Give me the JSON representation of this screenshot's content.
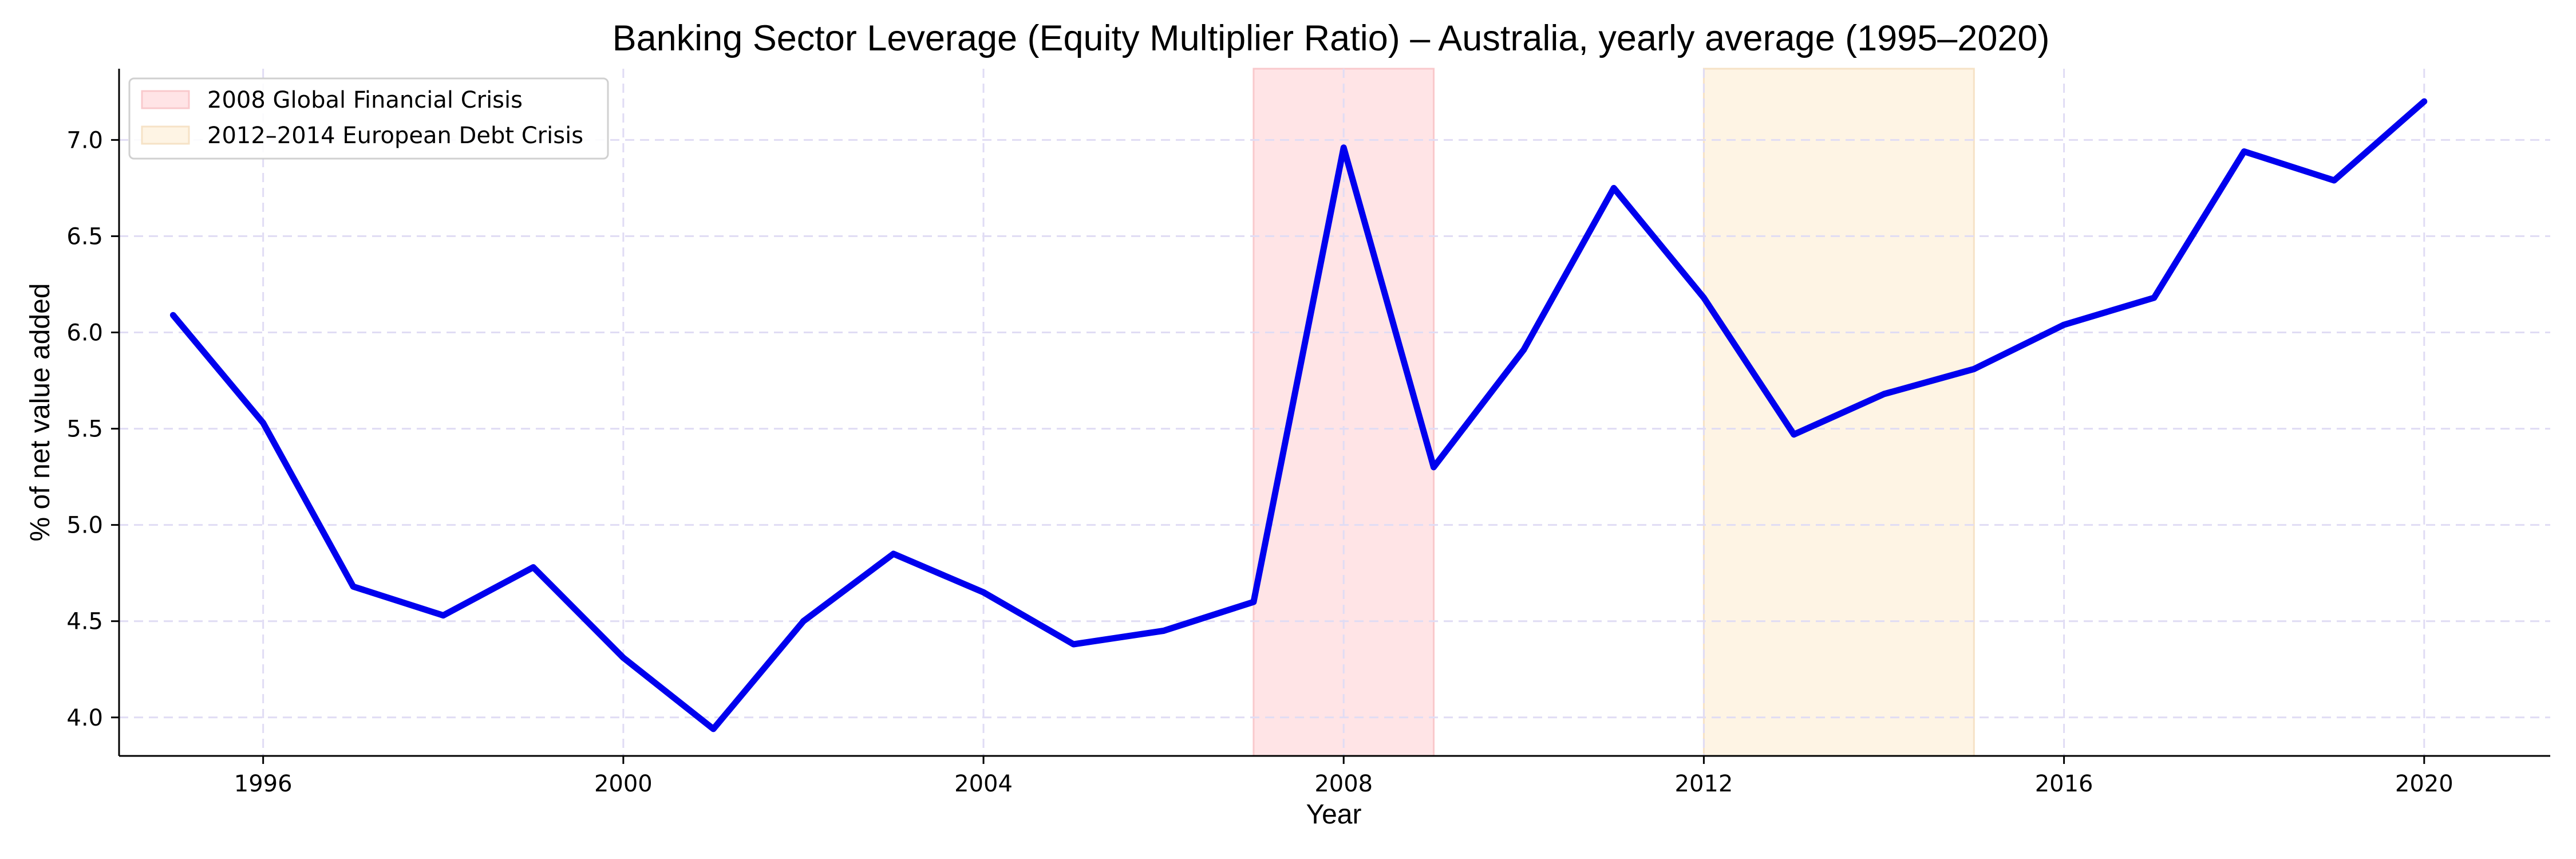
{
  "chart_data": {
    "type": "line",
    "title": "Banking Sector Leverage (Equity Multiplier Ratio) – Australia, yearly average (1995–2020)",
    "xlabel": "Year",
    "ylabel": "% of net value added",
    "xlim": [
      1994.4,
      2021.4
    ],
    "ylim": [
      3.8,
      7.37
    ],
    "x_ticks": [
      1996,
      2000,
      2004,
      2008,
      2012,
      2016,
      2020
    ],
    "y_ticks": [
      4.0,
      4.5,
      5.0,
      5.5,
      6.0,
      6.5,
      7.0
    ],
    "y_tick_labels": [
      "4.0",
      "4.5",
      "5.0",
      "5.5",
      "6.0",
      "6.5",
      "7.0"
    ],
    "grid": true,
    "legend_position": "top-left",
    "series": [
      {
        "color": "#0000ee",
        "x": [
          1995,
          1996,
          1997,
          1998,
          1999,
          2000,
          2001,
          2002,
          2003,
          2004,
          2005,
          2006,
          2007,
          2008,
          2009,
          2010,
          2011,
          2012,
          2013,
          2014,
          2015,
          2016,
          2017,
          2018,
          2019,
          2020
        ],
        "values": [
          6.09,
          5.53,
          4.68,
          4.53,
          4.78,
          4.31,
          3.94,
          4.5,
          4.85,
          4.65,
          4.38,
          4.45,
          4.6,
          6.96,
          5.3,
          5.91,
          6.75,
          6.18,
          5.47,
          5.68,
          5.81,
          6.04,
          6.18,
          6.94,
          6.79,
          7.2
        ]
      }
    ],
    "shaded_regions": [
      {
        "label": "2008 Global Financial Crisis",
        "start": 2007,
        "end": 2009,
        "color": "#ffe4e6",
        "edge": "#f9c9cc"
      },
      {
        "label": "2012–2014 European Debt Crisis",
        "start": 2012,
        "end": 2015,
        "color": "#fef4e4",
        "edge": "#f6e2c6"
      }
    ]
  }
}
